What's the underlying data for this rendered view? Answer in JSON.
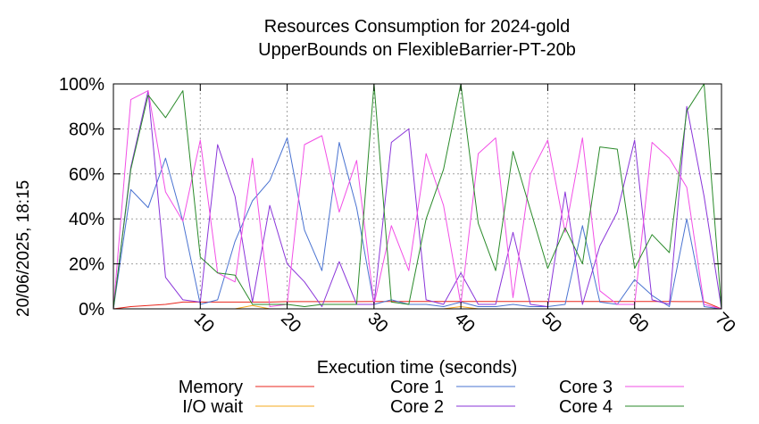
{
  "chart_data": {
    "type": "line",
    "title": "Resources Consumption for 2024-gold",
    "subtitle": "UpperBounds on FlexibleBarrier-PT-20b",
    "xlabel": "Execution time (seconds)",
    "ylabel": "",
    "side_label": "20/06/2025, 18:15",
    "xlim": [
      0,
      70
    ],
    "ylim": [
      0,
      100
    ],
    "x_ticks": [
      "10",
      "20",
      "30",
      "40",
      "50",
      "60",
      "70"
    ],
    "y_ticks": [
      "0%",
      "20%",
      "40%",
      "60%",
      "80%",
      "100%"
    ],
    "grid": true,
    "legend_position": "bottom",
    "series": [
      {
        "name": "Memory",
        "color": "#e8261c",
        "x": [
          0,
          2,
          4,
          6,
          8,
          10,
          12,
          14,
          16,
          18,
          20,
          22,
          24,
          26,
          28,
          30,
          32,
          34,
          36,
          38,
          40,
          42,
          44,
          46,
          48,
          50,
          52,
          54,
          56,
          58,
          60,
          62,
          64,
          66,
          68,
          70
        ],
        "y": [
          0,
          1,
          1.5,
          2,
          3,
          3,
          3,
          3,
          3,
          3,
          3.2,
          3.2,
          3.2,
          3.2,
          3.2,
          3.3,
          3.3,
          3.3,
          3.3,
          3.3,
          3.3,
          3.3,
          3.3,
          3.3,
          3.3,
          3.3,
          3.3,
          3.3,
          3.3,
          3.3,
          3.3,
          3.3,
          3.3,
          3.2,
          3.2,
          0
        ]
      },
      {
        "name": "I/O wait",
        "color": "#f5a91e",
        "x": [
          0,
          2,
          4,
          6,
          8,
          10,
          12,
          14,
          16,
          18,
          20,
          22,
          24,
          26,
          28,
          30,
          32,
          34,
          36,
          38,
          40,
          42,
          44,
          46,
          48,
          50,
          52,
          54,
          56,
          58,
          60,
          62,
          64,
          66,
          68,
          70
        ],
        "y": [
          0,
          0,
          0,
          0,
          0,
          0,
          0,
          0,
          1.5,
          0,
          0,
          0,
          0,
          0,
          0,
          0,
          0,
          0,
          0,
          0,
          1,
          0,
          0,
          0,
          0,
          0,
          0,
          0,
          0,
          0,
          0,
          0,
          0,
          0,
          0,
          0
        ]
      },
      {
        "name": "Core 1",
        "color": "#4a73d1",
        "x": [
          0,
          2,
          4,
          6,
          8,
          10,
          12,
          14,
          16,
          18,
          20,
          22,
          24,
          26,
          28,
          30,
          32,
          34,
          36,
          38,
          40,
          42,
          44,
          46,
          48,
          50,
          52,
          54,
          56,
          58,
          60,
          62,
          64,
          66,
          68,
          70
        ],
        "y": [
          0,
          53,
          45,
          67,
          39,
          2,
          4,
          30,
          48,
          57,
          76,
          35,
          17,
          74,
          45,
          2,
          4,
          2,
          2,
          1,
          3,
          1,
          1,
          2,
          1,
          1,
          2,
          37,
          3,
          2,
          13,
          6,
          1,
          40,
          1,
          0
        ]
      },
      {
        "name": "Core 2",
        "color": "#8a35d9",
        "x": [
          0,
          2,
          4,
          6,
          8,
          10,
          12,
          14,
          16,
          18,
          20,
          22,
          24,
          26,
          28,
          30,
          32,
          34,
          36,
          38,
          40,
          42,
          44,
          46,
          48,
          50,
          52,
          54,
          56,
          58,
          60,
          62,
          64,
          66,
          68,
          70
        ],
        "y": [
          0,
          63,
          97,
          14,
          4,
          3,
          73,
          50,
          3,
          46,
          20,
          12,
          1,
          21,
          2,
          2,
          74,
          80,
          4,
          2,
          16,
          2,
          2,
          34,
          2,
          1,
          52,
          2,
          28,
          43,
          75,
          4,
          2,
          90,
          50,
          0
        ]
      },
      {
        "name": "Core 3",
        "color": "#f24fe6",
        "x": [
          0,
          2,
          4,
          6,
          8,
          10,
          12,
          14,
          16,
          18,
          20,
          22,
          24,
          26,
          28,
          30,
          32,
          34,
          36,
          38,
          40,
          42,
          44,
          46,
          48,
          50,
          52,
          54,
          56,
          58,
          60,
          62,
          64,
          66,
          68,
          70
        ],
        "y": [
          0,
          93,
          97,
          52,
          39,
          75,
          16,
          12,
          67,
          1,
          2,
          73,
          77,
          43,
          66,
          2,
          37,
          17,
          69,
          46,
          2,
          69,
          76,
          5,
          60,
          75,
          34,
          76,
          8,
          2,
          2,
          74,
          67,
          54,
          2,
          0
        ]
      },
      {
        "name": "Core 4",
        "color": "#2a8a2a",
        "x": [
          0,
          2,
          4,
          6,
          8,
          10,
          12,
          14,
          16,
          18,
          20,
          22,
          24,
          26,
          28,
          30,
          32,
          34,
          36,
          38,
          40,
          42,
          44,
          46,
          48,
          50,
          52,
          54,
          56,
          58,
          60,
          62,
          64,
          66,
          68,
          70
        ],
        "y": [
          0,
          62,
          95,
          85,
          97,
          23,
          16,
          15,
          2,
          2,
          2,
          1,
          2,
          2,
          2,
          100,
          3,
          2,
          40,
          62,
          100,
          38,
          17,
          70,
          44,
          18,
          36,
          20,
          72,
          71,
          18,
          33,
          25,
          88,
          100,
          0
        ]
      }
    ]
  }
}
